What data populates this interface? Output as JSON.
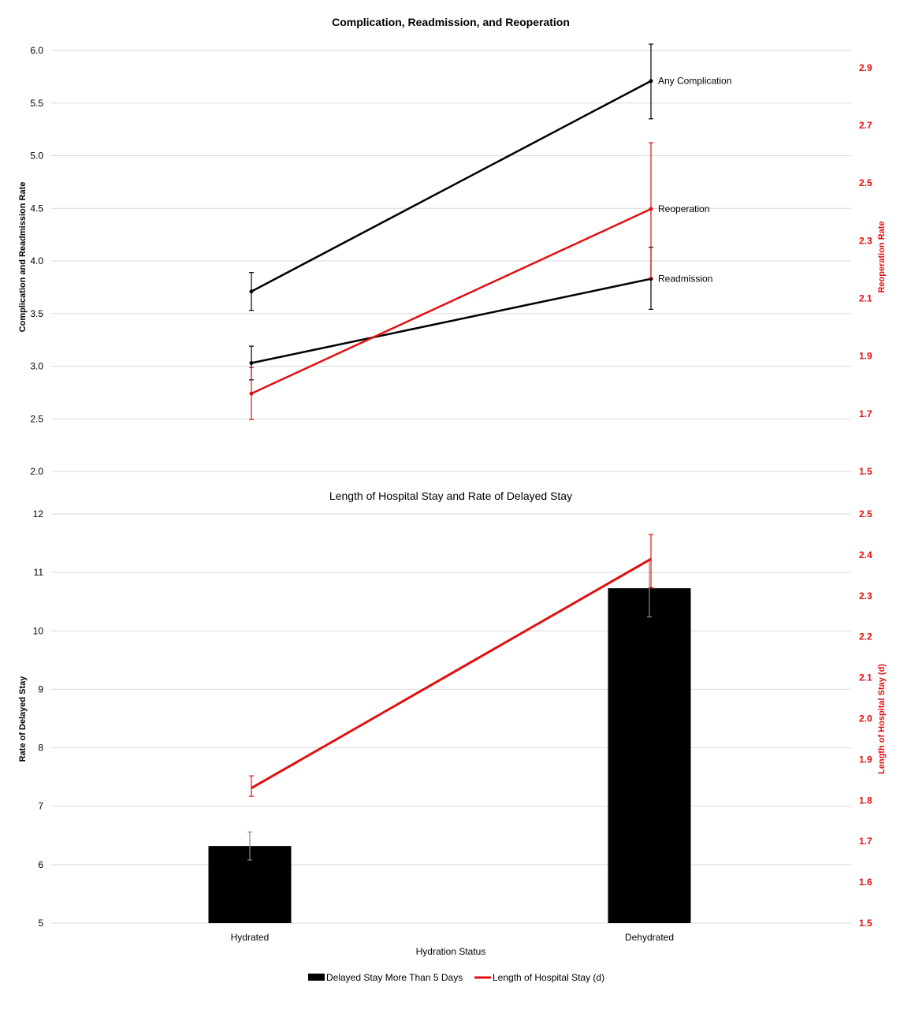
{
  "chart_data": [
    {
      "type": "line",
      "title": "Complication, Readmission, and Reoperation",
      "categories": [
        "Hydrated",
        "Dehydrated"
      ],
      "ylabel": "Complication and Readmission Rate",
      "ylim": [
        2.0,
        6.0
      ],
      "yticks": [
        "2.0",
        "2.5",
        "3.0",
        "3.5",
        "4.0",
        "4.5",
        "5.0",
        "5.5",
        "6.0"
      ],
      "y2label": "Reoperation Rate",
      "y2lim": [
        1.5,
        2.96
      ],
      "y2ticks": [
        "1.5",
        "1.7",
        "1.9",
        "2.1",
        "2.3",
        "2.5",
        "2.7",
        "2.9"
      ],
      "grid": true,
      "series": [
        {
          "name": "Any Complication",
          "axis": "left",
          "color": "#000000",
          "values": [
            3.71,
            5.71
          ],
          "errors": [
            [
              3.53,
              3.89
            ],
            [
              5.35,
              6.06
            ]
          ]
        },
        {
          "name": "Readmission",
          "axis": "left",
          "color": "#000000",
          "values": [
            3.03,
            3.83
          ],
          "errors": [
            [
              2.87,
              3.19
            ],
            [
              3.54,
              4.13
            ]
          ]
        },
        {
          "name": "Reoperation",
          "axis": "right",
          "color": "#e01010",
          "values": [
            1.77,
            2.41
          ],
          "errors": [
            [
              1.68,
              1.86
            ],
            [
              2.17,
              2.64
            ]
          ]
        }
      ]
    },
    {
      "type": "bar",
      "title": "Length of Hospital Stay and Rate of Delayed Stay",
      "categories": [
        "Hydrated",
        "Dehydrated"
      ],
      "xlabel": "Hydration Status",
      "ylabel": "Rate of Delayed Stay",
      "ylim": [
        5,
        12
      ],
      "yticks": [
        "5",
        "6",
        "7",
        "8",
        "9",
        "10",
        "11",
        "12"
      ],
      "y2label": "Length of Hospital Stay (d)",
      "y2lim": [
        1.5,
        2.5
      ],
      "y2ticks": [
        "1.5",
        "1.6",
        "1.7",
        "1.8",
        "1.9",
        "2.0",
        "2.1",
        "2.2",
        "2.3",
        "2.4",
        "2.5"
      ],
      "grid": true,
      "legend_position": "bottom",
      "series": [
        {
          "name": "Delayed Stay More Than 5 Days",
          "kind": "bar",
          "axis": "left",
          "color": "#000000",
          "values": [
            6.32,
            10.73
          ],
          "errors": [
            [
              6.08,
              6.56
            ],
            [
              10.24,
              11.21
            ]
          ]
        },
        {
          "name": "Length of Hospital Stay (d)",
          "kind": "line",
          "axis": "right",
          "color": "#e01010",
          "values": [
            1.83,
            2.39
          ],
          "errors": [
            [
              1.81,
              1.86
            ],
            [
              2.32,
              2.45
            ]
          ]
        }
      ]
    }
  ]
}
